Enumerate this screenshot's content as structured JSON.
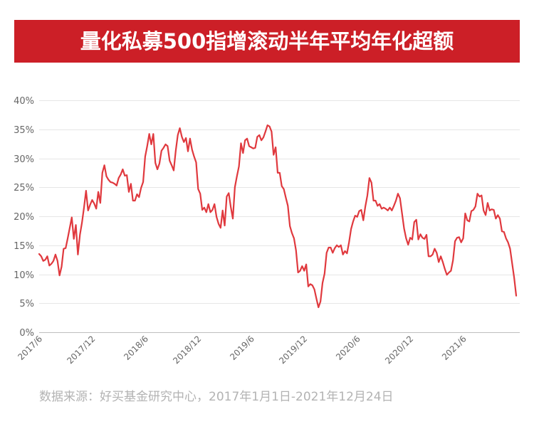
{
  "chart_data": {
    "type": "line",
    "title": "量化私募500指增滚动半年平均年化超额",
    "xlabel": "",
    "ylabel": "",
    "ylim": [
      0,
      40
    ],
    "xlim": [
      "2017-06-30",
      "2021-12-24"
    ],
    "grid": "horizontal",
    "legend": "none",
    "y_ticks": [
      {
        "value": 0,
        "label": "0%"
      },
      {
        "value": 5,
        "label": "5%"
      },
      {
        "value": 10,
        "label": "10%"
      },
      {
        "value": 15,
        "label": "15%"
      },
      {
        "value": 20,
        "label": "20%"
      },
      {
        "value": 25,
        "label": "25%"
      },
      {
        "value": 30,
        "label": "30%"
      },
      {
        "value": 35,
        "label": "35%"
      },
      {
        "value": 40,
        "label": "40%"
      }
    ],
    "x_ticks": [
      {
        "x": "2017-06-30",
        "label": "2017/6"
      },
      {
        "x": "2017-12-29",
        "label": "2017/12"
      },
      {
        "x": "2018-06-29",
        "label": "2018/6"
      },
      {
        "x": "2018-12-28",
        "label": "2018/12"
      },
      {
        "x": "2019-06-28",
        "label": "2019/6"
      },
      {
        "x": "2019-12-27",
        "label": "2019/12"
      },
      {
        "x": "2020-06-26",
        "label": "2020/6"
      },
      {
        "x": "2020-12-25",
        "label": "2020/12"
      },
      {
        "x": "2021-06-25",
        "label": "2021/6"
      }
    ],
    "series": [
      {
        "color": "#e0393e",
        "x": [
          "2017-06-30",
          "2017-07-07",
          "2017-07-14",
          "2017-07-21",
          "2017-07-28",
          "2017-08-04",
          "2017-08-11",
          "2017-08-18",
          "2017-08-25",
          "2017-09-01",
          "2017-09-08",
          "2017-09-15",
          "2017-09-22",
          "2017-09-29",
          "2017-10-06",
          "2017-10-13",
          "2017-10-20",
          "2017-10-27",
          "2017-11-03",
          "2017-11-10",
          "2017-11-17",
          "2017-11-24",
          "2017-12-01",
          "2017-12-08",
          "2017-12-15",
          "2017-12-22",
          "2017-12-29",
          "2018-01-05",
          "2018-01-12",
          "2018-01-19",
          "2018-01-26",
          "2018-02-02",
          "2018-02-09",
          "2018-02-16",
          "2018-02-23",
          "2018-03-02",
          "2018-03-09",
          "2018-03-16",
          "2018-03-23",
          "2018-03-30",
          "2018-04-06",
          "2018-04-13",
          "2018-04-20",
          "2018-04-27",
          "2018-05-04",
          "2018-05-11",
          "2018-05-18",
          "2018-05-25",
          "2018-06-01",
          "2018-06-08",
          "2018-06-15",
          "2018-06-22",
          "2018-06-29",
          "2018-07-06",
          "2018-07-13",
          "2018-07-20",
          "2018-07-27",
          "2018-08-03",
          "2018-08-10",
          "2018-08-17",
          "2018-08-24",
          "2018-08-31",
          "2018-09-07",
          "2018-09-14",
          "2018-09-21",
          "2018-09-28",
          "2018-10-05",
          "2018-10-12",
          "2018-10-19",
          "2018-10-26",
          "2018-11-02",
          "2018-11-09",
          "2018-11-16",
          "2018-11-23",
          "2018-11-30",
          "2018-12-07",
          "2018-12-14",
          "2018-12-21",
          "2018-12-28",
          "2019-01-04",
          "2019-01-11",
          "2019-01-18",
          "2019-01-25",
          "2019-02-01",
          "2019-02-08",
          "2019-02-15",
          "2019-02-22",
          "2019-03-01",
          "2019-03-08",
          "2019-03-15",
          "2019-03-22",
          "2019-03-29",
          "2019-04-05",
          "2019-04-12",
          "2019-04-19",
          "2019-04-26",
          "2019-05-03",
          "2019-05-10",
          "2019-05-17",
          "2019-05-24",
          "2019-05-31",
          "2019-06-07",
          "2019-06-14",
          "2019-06-21",
          "2019-06-28",
          "2019-07-05",
          "2019-07-12",
          "2019-07-19",
          "2019-07-26",
          "2019-08-02",
          "2019-08-09",
          "2019-08-16",
          "2019-08-23",
          "2019-08-30",
          "2019-09-06",
          "2019-09-13",
          "2019-09-20",
          "2019-09-27",
          "2019-10-04",
          "2019-10-11",
          "2019-10-18",
          "2019-10-25",
          "2019-11-01",
          "2019-11-08",
          "2019-11-15",
          "2019-11-22",
          "2019-11-29",
          "2019-12-06",
          "2019-12-13",
          "2019-12-20",
          "2019-12-27",
          "2020-01-03",
          "2020-01-10",
          "2020-01-17",
          "2020-01-24",
          "2020-01-31",
          "2020-02-07",
          "2020-02-14",
          "2020-02-21",
          "2020-02-28",
          "2020-03-06",
          "2020-03-13",
          "2020-03-20",
          "2020-03-27",
          "2020-04-03",
          "2020-04-10",
          "2020-04-17",
          "2020-04-24",
          "2020-05-01",
          "2020-05-08",
          "2020-05-15",
          "2020-05-22",
          "2020-05-29",
          "2020-06-05",
          "2020-06-12",
          "2020-06-19",
          "2020-06-26",
          "2020-07-03",
          "2020-07-10",
          "2020-07-17",
          "2020-07-24",
          "2020-07-31",
          "2020-08-07",
          "2020-08-14",
          "2020-08-21",
          "2020-08-28",
          "2020-09-04",
          "2020-09-11",
          "2020-09-18",
          "2020-09-25",
          "2020-10-02",
          "2020-10-09",
          "2020-10-16",
          "2020-10-23",
          "2020-10-30",
          "2020-11-06",
          "2020-11-13",
          "2020-11-20",
          "2020-11-27",
          "2020-12-04",
          "2020-12-11",
          "2020-12-18",
          "2020-12-25",
          "2021-01-01",
          "2021-01-08",
          "2021-01-15",
          "2021-01-22",
          "2021-01-29",
          "2021-02-05",
          "2021-02-12",
          "2021-02-19",
          "2021-02-26",
          "2021-03-05",
          "2021-03-12",
          "2021-03-19",
          "2021-03-26",
          "2021-04-02",
          "2021-04-09",
          "2021-04-16",
          "2021-04-23",
          "2021-04-30",
          "2021-05-07",
          "2021-05-14",
          "2021-05-21",
          "2021-05-28",
          "2021-06-04",
          "2021-06-11",
          "2021-06-18",
          "2021-06-25",
          "2021-07-02",
          "2021-07-09",
          "2021-07-16",
          "2021-07-23",
          "2021-07-30",
          "2021-08-06",
          "2021-08-13",
          "2021-08-20",
          "2021-08-27",
          "2021-09-03",
          "2021-09-10",
          "2021-09-17",
          "2021-09-24",
          "2021-10-01",
          "2021-10-08",
          "2021-10-15",
          "2021-10-22",
          "2021-10-29",
          "2021-11-05",
          "2021-11-12",
          "2021-11-19",
          "2021-11-26",
          "2021-12-03",
          "2021-12-10",
          "2021-12-17",
          "2021-12-24"
        ],
        "values": [
          13.5,
          13.1,
          12.3,
          12.5,
          13.1,
          11.5,
          11.8,
          12.3,
          13.4,
          12.3,
          9.8,
          11.3,
          14.4,
          14.5,
          16.2,
          18.0,
          19.8,
          16.1,
          18.5,
          13.4,
          16.8,
          18.9,
          21.5,
          24.4,
          21.0,
          22.0,
          22.8,
          22.2,
          21.3,
          24.2,
          22.3,
          27.5,
          28.8,
          26.9,
          26.3,
          25.9,
          25.8,
          25.6,
          25.3,
          26.6,
          27.2,
          28.1,
          27.0,
          27.1,
          24.2,
          25.6,
          22.7,
          22.7,
          23.8,
          23.3,
          24.9,
          25.9,
          30.3,
          32.1,
          34.2,
          32.4,
          34.2,
          29.2,
          28.1,
          29.1,
          31.3,
          31.8,
          32.4,
          32.1,
          29.6,
          28.8,
          27.9,
          31.3,
          34.0,
          35.2,
          33.7,
          32.8,
          33.5,
          31.2,
          33.4,
          31.5,
          30.3,
          29.3,
          24.7,
          23.9,
          21.1,
          21.5,
          20.7,
          22.1,
          20.7,
          21.1,
          22.1,
          19.9,
          18.7,
          18.0,
          21.0,
          18.4,
          23.4,
          24.0,
          21.6,
          19.6,
          25.0,
          26.9,
          28.6,
          32.6,
          30.9,
          33.1,
          33.4,
          32.1,
          31.9,
          31.7,
          31.8,
          33.7,
          34.0,
          33.1,
          33.6,
          34.6,
          35.7,
          35.5,
          34.6,
          30.6,
          31.9,
          27.5,
          27.5,
          25.2,
          24.7,
          23.2,
          21.8,
          18.3,
          17.1,
          16.2,
          14.1,
          10.3,
          10.6,
          11.4,
          10.6,
          11.7,
          7.9,
          8.3,
          8.1,
          7.4,
          5.8,
          4.3,
          5.3,
          8.5,
          10.1,
          13.7,
          14.6,
          14.6,
          13.7,
          14.5,
          15.0,
          14.7,
          15.0,
          13.4,
          14.0,
          13.6,
          15.5,
          17.8,
          19.1,
          20.1,
          19.9,
          20.9,
          21.1,
          19.3,
          21.7,
          23.6,
          26.6,
          25.8,
          22.7,
          22.7,
          21.8,
          22.1,
          21.3,
          21.5,
          21.3,
          21.0,
          21.5,
          21.0,
          21.8,
          22.7,
          23.9,
          23.1,
          20.5,
          17.9,
          16.2,
          15.1,
          16.3,
          16.0,
          19.0,
          19.4,
          16.0,
          16.9,
          16.3,
          16.1,
          16.8,
          13.1,
          13.1,
          13.4,
          14.4,
          13.7,
          12.1,
          13.1,
          12.1,
          10.9,
          9.9,
          10.3,
          10.6,
          12.4,
          15.7,
          16.3,
          16.4,
          15.5,
          16.2,
          20.5,
          19.3,
          19.1,
          20.9,
          21.1,
          21.7,
          23.9,
          23.4,
          23.6,
          21.0,
          20.2,
          22.3,
          21.0,
          21.2,
          21.1,
          19.6,
          20.2,
          19.6,
          17.4,
          17.3,
          16.2,
          15.5,
          14.4,
          11.9,
          9.4,
          6.3
        ]
      }
    ]
  },
  "source_note": "数据来源：好买基金研究中心，2017年1月1日-2021年12月24日",
  "colors": {
    "banner": "#cc1f27",
    "title_text": "#ffffff",
    "line": "#e0393e",
    "grid": "#e6e6e6",
    "baseline": "#bfbfbf",
    "axis_text": "#666666",
    "source_text": "#b3b3b3"
  }
}
